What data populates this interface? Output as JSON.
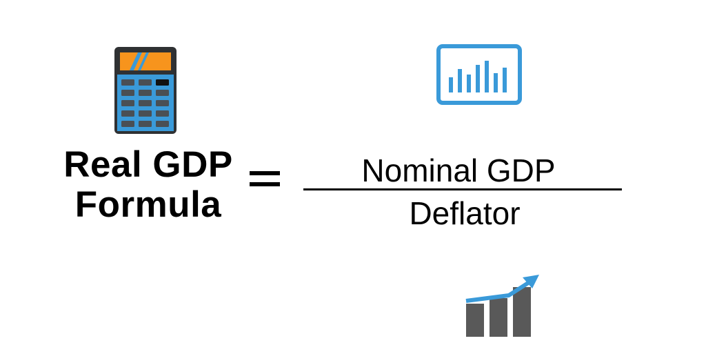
{
  "formula": {
    "lhs_line1": "Real GDP",
    "lhs_line2": "Formula",
    "equals": "=",
    "numerator": "Nominal GDP",
    "denominator": "Deflator"
  },
  "icons": {
    "calculator": "calculator-icon",
    "monitor": "bar-chart-monitor-icon",
    "growth": "growth-chart-icon"
  },
  "colors": {
    "accent_blue": "#3a9ad9",
    "accent_orange": "#f7941d",
    "dark_slate": "#2f3133",
    "key_gray": "#4a4f54",
    "bar_gray": "#595959",
    "text": "#000000"
  }
}
